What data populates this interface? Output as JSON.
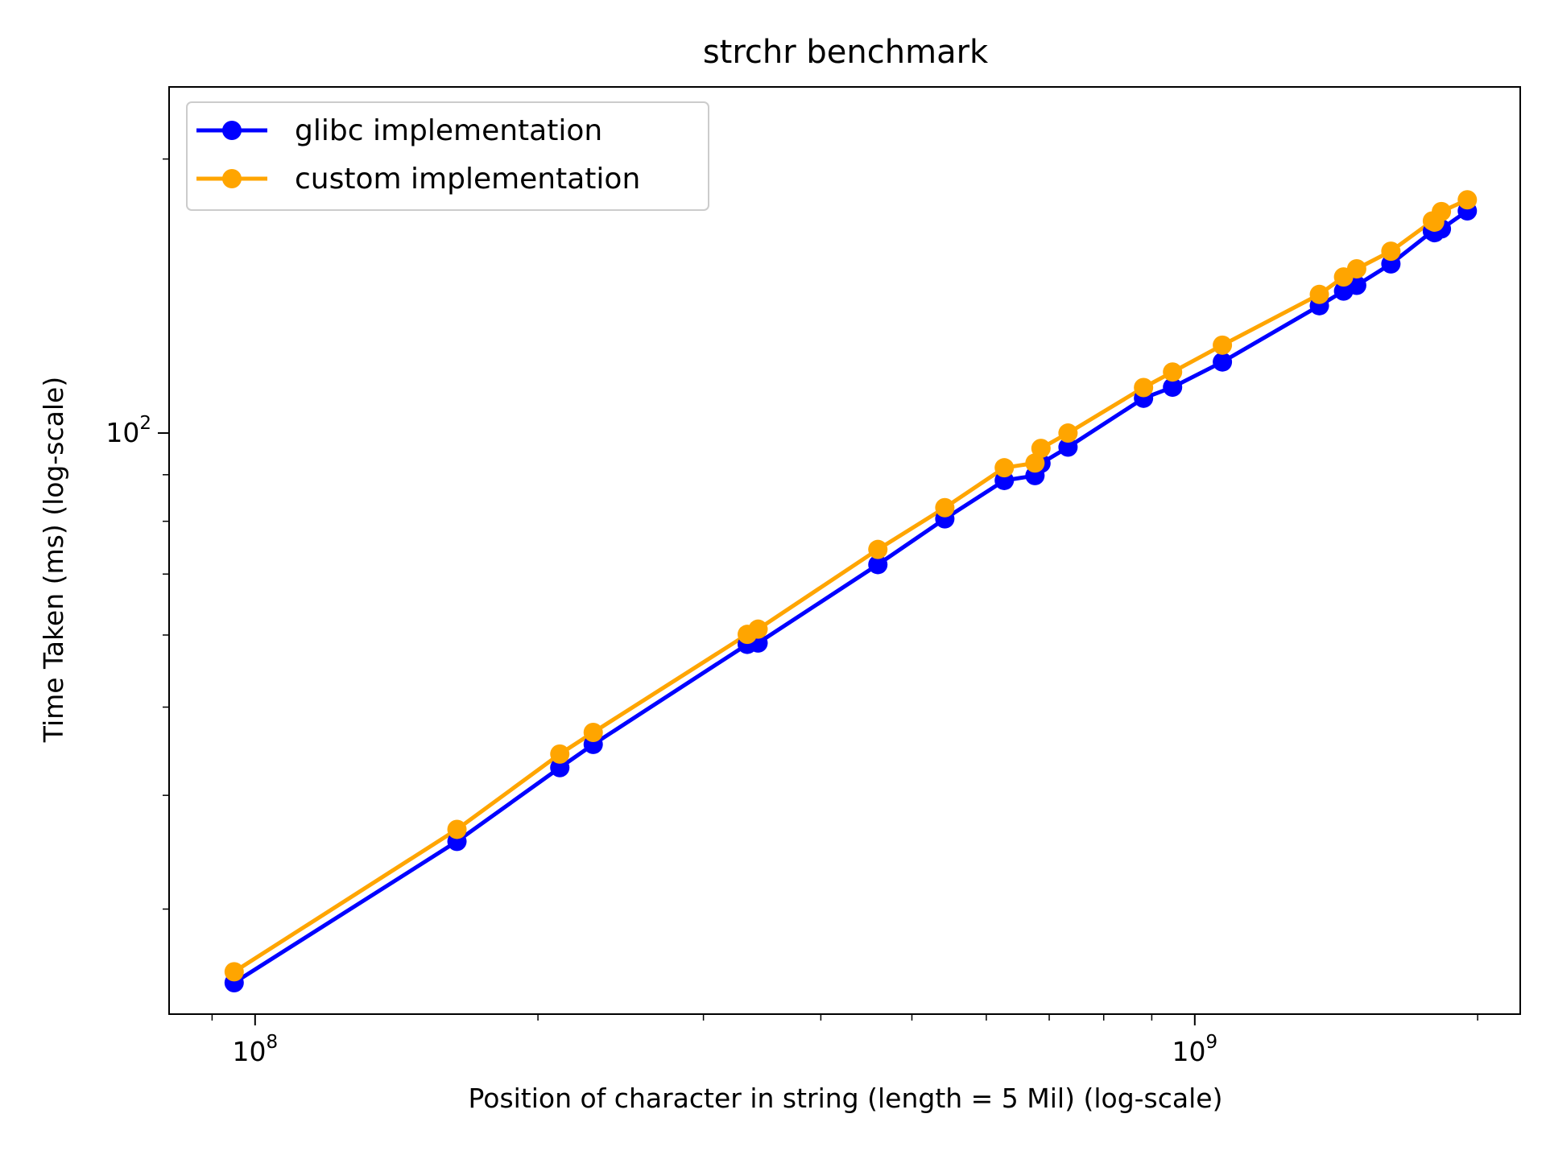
{
  "chart_data": {
    "type": "line",
    "title": "strchr benchmark",
    "xlabel": "Position of character in string (length = 5 Mil) (log-scale)",
    "ylabel": "Time Taken (ms) (log-scale)",
    "xscale": "log",
    "yscale": "log",
    "xlim": [
      81000000,
      2220000000
    ],
    "ylim": [
      23.0,
      240.0
    ],
    "grid": false,
    "legend_position": "top-left",
    "x_major_ticks": [
      {
        "value": 100000000,
        "base": "10",
        "exp": "8"
      },
      {
        "value": 1000000000,
        "base": "10",
        "exp": "9"
      }
    ],
    "y_major_ticks": [
      {
        "value": 100,
        "base": "10",
        "exp": "2"
      }
    ],
    "series": [
      {
        "name": "glibc implementation",
        "color": "#0000ff",
        "points": [
          [
            95000000,
            24.9
          ],
          [
            164000000,
            35.6
          ],
          [
            211000000,
            42.9
          ],
          [
            229000000,
            45.5
          ],
          [
            334000000,
            58.6
          ],
          [
            343000000,
            58.8
          ],
          [
            460000000,
            71.7
          ],
          [
            542000000,
            80.5
          ],
          [
            627000000,
            88.7
          ],
          [
            676000000,
            89.8
          ],
          [
            686000000,
            92.6
          ],
          [
            733000000,
            96.5
          ],
          [
            882000000,
            109.2
          ],
          [
            947000000,
            112.3
          ],
          [
            1070000000,
            119.7
          ],
          [
            1357000000,
            138.0
          ],
          [
            1440000000,
            143.2
          ],
          [
            1487000000,
            145.3
          ],
          [
            1617000000,
            153.4
          ],
          [
            1790000000,
            166.6
          ],
          [
            1800000000,
            166.0
          ],
          [
            1830000000,
            167.6
          ],
          [
            1950000000,
            175.4
          ]
        ]
      },
      {
        "name": "custom implementation",
        "color": "#ffa500",
        "points": [
          [
            95000000,
            25.6
          ],
          [
            164000000,
            36.7
          ],
          [
            211000000,
            44.4
          ],
          [
            229000000,
            46.9
          ],
          [
            334000000,
            60.1
          ],
          [
            343000000,
            60.9
          ],
          [
            460000000,
            74.5
          ],
          [
            542000000,
            82.8
          ],
          [
            627000000,
            91.6
          ],
          [
            676000000,
            92.7
          ],
          [
            686000000,
            96.2
          ],
          [
            733000000,
            100.0
          ],
          [
            882000000,
            112.2
          ],
          [
            947000000,
            116.7
          ],
          [
            1070000000,
            124.9
          ],
          [
            1357000000,
            142.0
          ],
          [
            1440000000,
            148.4
          ],
          [
            1487000000,
            151.5
          ],
          [
            1617000000,
            158.4
          ],
          [
            1790000000,
            171.0
          ],
          [
            1800000000,
            170.5
          ],
          [
            1830000000,
            175.1
          ],
          [
            1950000000,
            180.4
          ]
        ]
      }
    ]
  }
}
